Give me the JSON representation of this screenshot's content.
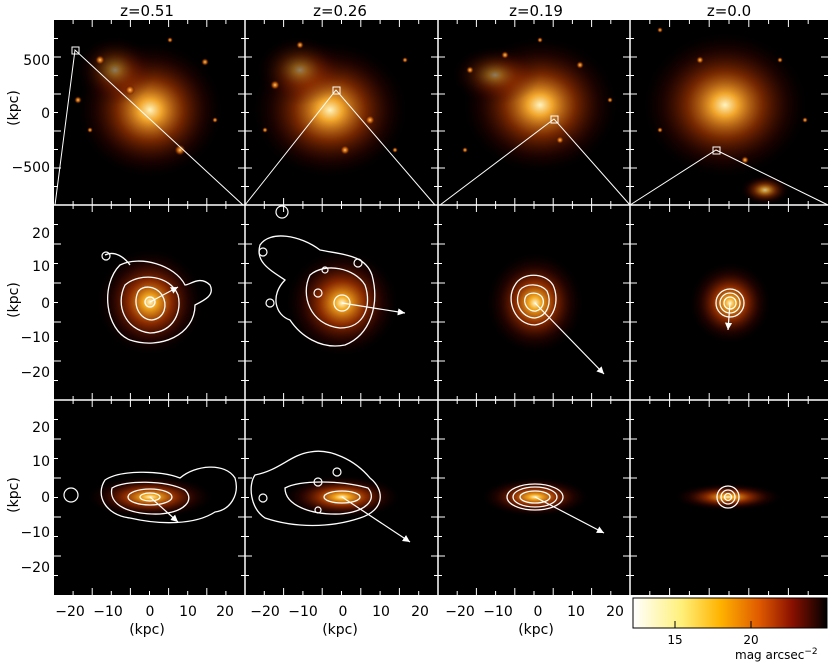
{
  "columns": [
    "z=0.51",
    "z=0.26",
    "z=0.19",
    "z=0.0"
  ],
  "y_axis": {
    "label": "(kpc)",
    "row1_ticks": [
      "500",
      "0",
      "−500"
    ],
    "row23_ticks": [
      "20",
      "10",
      "0",
      "−10",
      "−20"
    ]
  },
  "x_axis": {
    "label": "(kpc)",
    "ticks": [
      "−20",
      "−10",
      "0",
      "10",
      "20"
    ]
  },
  "colorbar": {
    "ticks": [
      "15",
      "20"
    ],
    "label": "mag arcsec",
    "exponent": "−2",
    "colors": [
      "#ffffff",
      "#fff07a",
      "#ffb300",
      "#e05a00",
      "#8a1000",
      "#000000"
    ]
  },
  "arrows_color": "#ffffff",
  "contour_color": "#ffffff"
}
